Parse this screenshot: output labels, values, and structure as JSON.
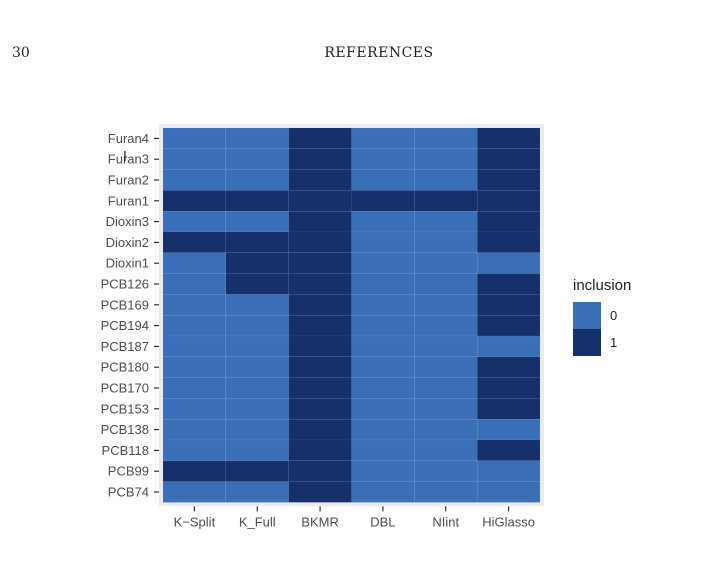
{
  "page": {
    "page_number": "30",
    "running_head": "REFERENCES"
  },
  "chart_data": {
    "type": "heatmap",
    "title": "",
    "xlabel": "",
    "ylabel": "",
    "x_categories": [
      "K−Split",
      "K_Full",
      "BKMR",
      "DBL",
      "NIint",
      "HiGlasso"
    ],
    "y_categories": [
      "Furan4",
      "Furan3",
      "Furan2",
      "Furan1",
      "Dioxin3",
      "Dioxin2",
      "Dioxin1",
      "PCB126",
      "PCB169",
      "PCB194",
      "PCB187",
      "PCB180",
      "PCB170",
      "PCB153",
      "PCB138",
      "PCB118",
      "PCB99",
      "PCB74"
    ],
    "values": [
      [
        0,
        0,
        1,
        0,
        0,
        1
      ],
      [
        0,
        0,
        1,
        0,
        0,
        1
      ],
      [
        0,
        0,
        1,
        0,
        0,
        1
      ],
      [
        1,
        1,
        1,
        1,
        1,
        1
      ],
      [
        0,
        0,
        1,
        0,
        0,
        1
      ],
      [
        1,
        1,
        1,
        0,
        0,
        1
      ],
      [
        0,
        1,
        1,
        0,
        0,
        0
      ],
      [
        0,
        1,
        1,
        0,
        0,
        1
      ],
      [
        0,
        0,
        1,
        0,
        0,
        1
      ],
      [
        0,
        0,
        1,
        0,
        0,
        1
      ],
      [
        0,
        0,
        1,
        0,
        0,
        0
      ],
      [
        0,
        0,
        1,
        0,
        0,
        1
      ],
      [
        0,
        0,
        1,
        0,
        0,
        1
      ],
      [
        0,
        0,
        1,
        0,
        0,
        1
      ],
      [
        0,
        0,
        1,
        0,
        0,
        0
      ],
      [
        0,
        0,
        1,
        0,
        0,
        1
      ],
      [
        1,
        1,
        1,
        0,
        0,
        0
      ],
      [
        0,
        0,
        1,
        0,
        0,
        0
      ]
    ],
    "legend": {
      "title": "inclusion",
      "entries": [
        {
          "label": "0",
          "value": 0,
          "color": "#3A6FB8"
        },
        {
          "label": "1",
          "value": 1,
          "color": "#15306A"
        }
      ],
      "position": "right"
    },
    "colors": {
      "0": "#3A6FB8",
      "1": "#15306A",
      "panel_background": "#EBEBEB",
      "tick_text": "#4D4D4D"
    }
  }
}
